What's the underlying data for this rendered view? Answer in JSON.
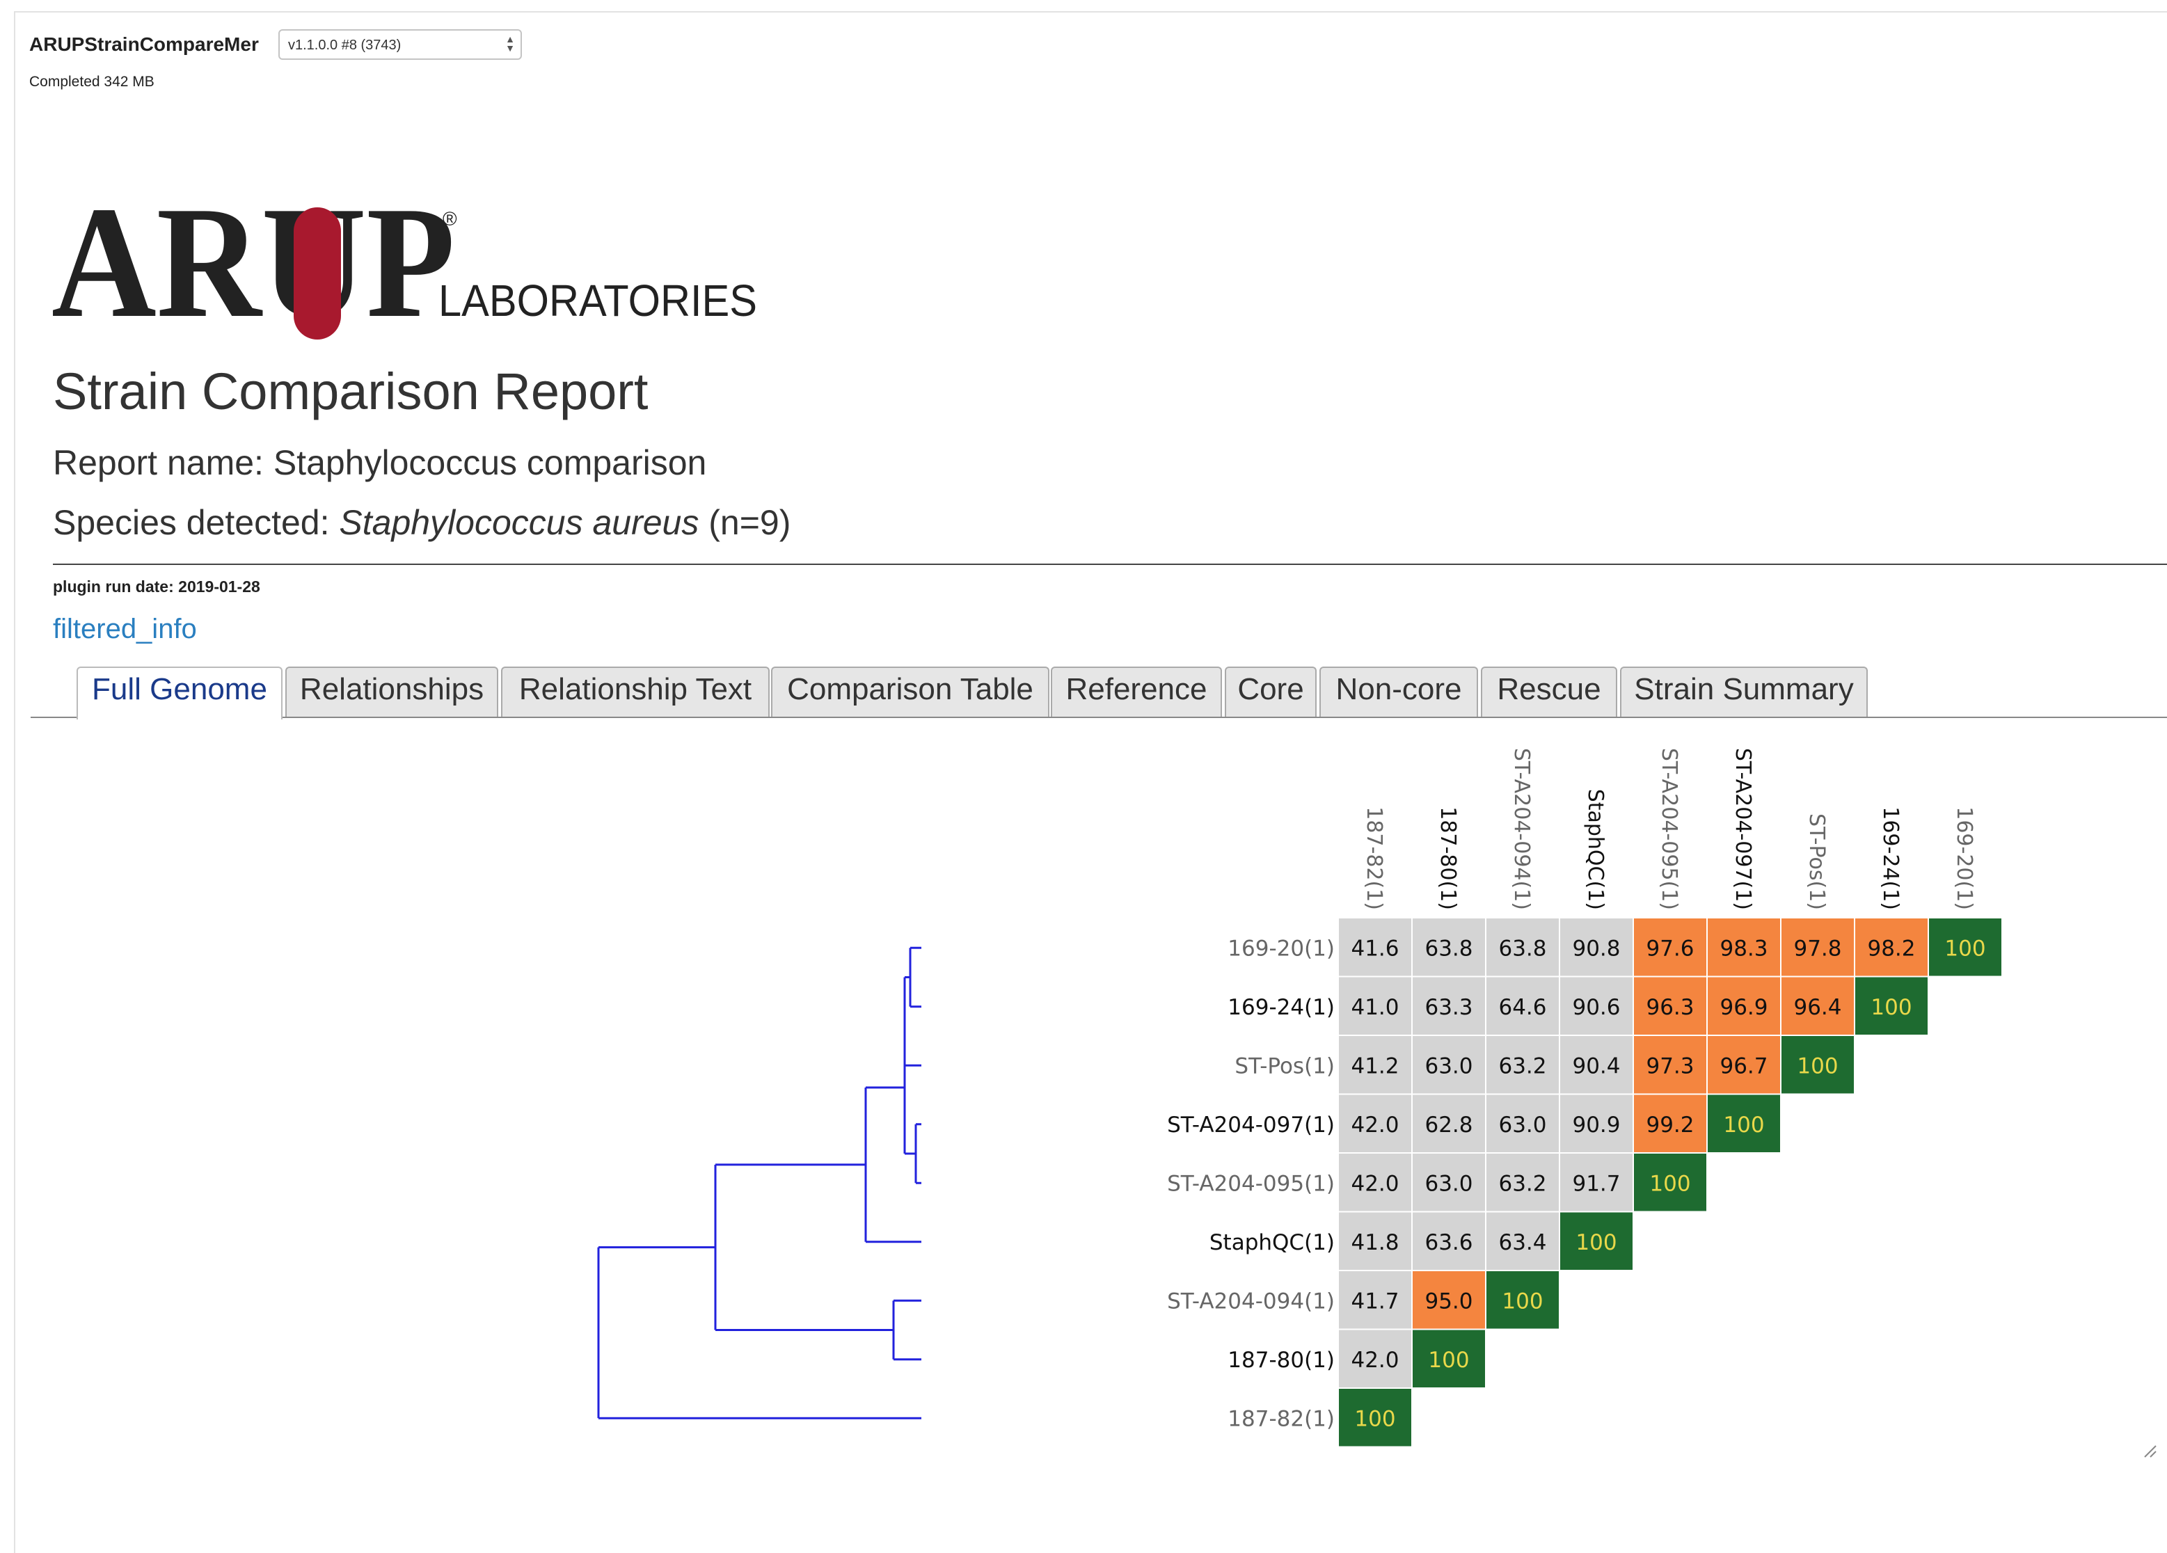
{
  "app": {
    "title": "ARUPStrainCompareMer",
    "version": "v1.1.0.0 #8 (3743)",
    "status": "Completed 342 MB"
  },
  "logo": {
    "main": "ARUP",
    "sub": "LABORATORIES",
    "mark": "®"
  },
  "report": {
    "title": "Strain Comparison Report",
    "name_line": "Report name: Staphylococcus comparison",
    "species_prefix": "Species detected: ",
    "species_name": "Staphylococcus aureus",
    "species_count": " (n=9)",
    "run_date": "plugin run date: 2019-01-28",
    "filtered_link": "filtered_info"
  },
  "tabs": [
    {
      "label": "Full Genome",
      "active": true
    },
    {
      "label": "Relationships",
      "active": false
    },
    {
      "label": "Relationship Text",
      "active": false
    },
    {
      "label": "Comparison Table",
      "active": false
    },
    {
      "label": "Reference",
      "active": false
    },
    {
      "label": "Core",
      "active": false
    },
    {
      "label": "Non-core",
      "active": false
    },
    {
      "label": "Rescue",
      "active": false
    },
    {
      "label": "Strain Summary",
      "active": false
    }
  ],
  "colors": {
    "high": "#f4853f",
    "diagonal": "#1e6b30",
    "diagonal_text": "#e9d84a",
    "low": "#d4d4d4",
    "dendrogram": "#2222dd",
    "label_dark": "#111111",
    "label_gray": "#666666"
  },
  "chart_data": {
    "type": "heatmap",
    "columns": [
      "187-82(1)",
      "187-80(1)",
      "ST-A204-094(1)",
      "StaphQC(1)",
      "ST-A204-095(1)",
      "ST-A204-097(1)",
      "ST-Pos(1)",
      "169-24(1)",
      "169-20(1)"
    ],
    "rows": [
      {
        "label": "169-20(1)",
        "values": [
          "41.6",
          "63.8",
          "63.8",
          "90.8",
          "97.6",
          "98.3",
          "97.8",
          "98.2",
          "100"
        ]
      },
      {
        "label": "169-24(1)",
        "values": [
          "41.0",
          "63.3",
          "64.6",
          "90.6",
          "96.3",
          "96.9",
          "96.4",
          "100"
        ]
      },
      {
        "label": "ST-Pos(1)",
        "values": [
          "41.2",
          "63.0",
          "63.2",
          "90.4",
          "97.3",
          "96.7",
          "100"
        ]
      },
      {
        "label": "ST-A204-097(1)",
        "values": [
          "42.0",
          "62.8",
          "63.0",
          "90.9",
          "99.2",
          "100"
        ]
      },
      {
        "label": "ST-A204-095(1)",
        "values": [
          "42.0",
          "63.0",
          "63.2",
          "91.7",
          "100"
        ]
      },
      {
        "label": "StaphQC(1)",
        "values": [
          "41.8",
          "63.6",
          "63.4",
          "100"
        ]
      },
      {
        "label": "ST-A204-094(1)",
        "values": [
          "41.7",
          "95.0",
          "100"
        ]
      },
      {
        "label": "187-80(1)",
        "values": [
          "42.0",
          "100"
        ]
      },
      {
        "label": "187-82(1)",
        "values": [
          "100"
        ]
      }
    ],
    "dendrogram": {
      "leaves": [
        "169-20(1)",
        "169-24(1)",
        "ST-Pos(1)",
        "ST-A204-097(1)",
        "ST-A204-095(1)",
        "StaphQC(1)",
        "ST-A204-094(1)",
        "187-80(1)",
        "187-82(1)"
      ],
      "merges": [
        {
          "members": [
            0,
            1
          ],
          "height": 0.02
        },
        {
          "members": [
            3,
            4
          ],
          "height": 0.01
        },
        {
          "members": [
            0,
            1,
            2
          ],
          "height": 0.03
        },
        {
          "members": [
            0,
            1,
            2,
            3,
            4
          ],
          "height": 0.03
        },
        {
          "members": [
            0,
            1,
            2,
            3,
            4,
            5
          ],
          "height": 0.1
        },
        {
          "members": [
            6,
            7
          ],
          "height": 0.05
        },
        {
          "members": [
            0,
            1,
            2,
            3,
            4,
            5,
            6,
            7
          ],
          "height": 0.37
        },
        {
          "members": [
            0,
            1,
            2,
            3,
            4,
            5,
            6,
            7,
            8
          ],
          "height": 0.58
        }
      ]
    }
  }
}
